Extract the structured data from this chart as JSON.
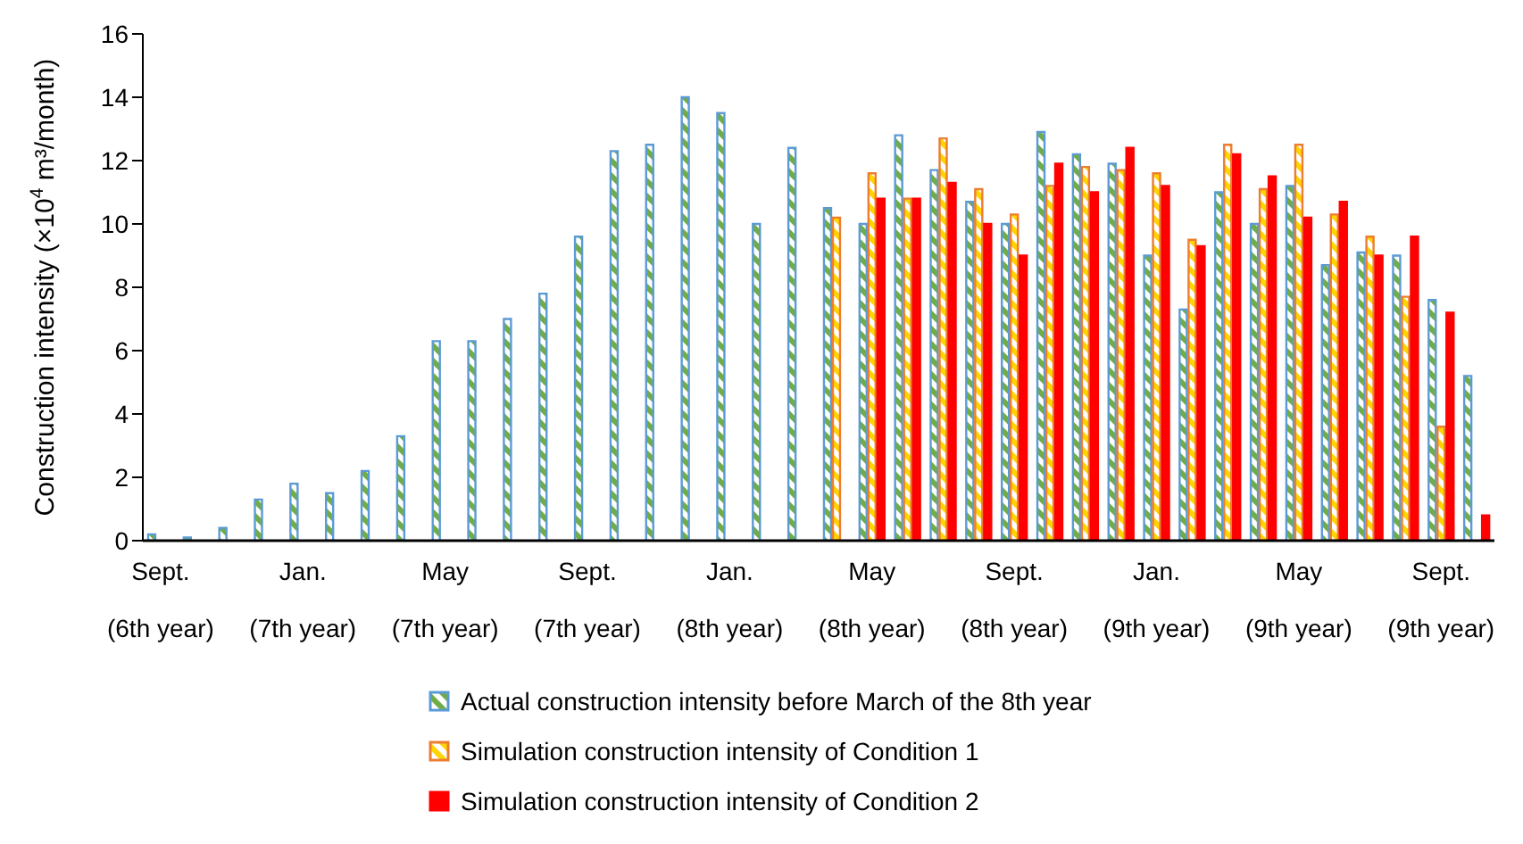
{
  "chart_data": {
    "type": "bar",
    "ylabel": "Construction intensity (×10$^{4}$ m³/month)",
    "categories": [
      "Sept. (6th year)",
      null,
      null,
      null,
      "Jan. (7th year)",
      null,
      null,
      null,
      "May (7th year)",
      null,
      null,
      null,
      "Sept. (7th year)",
      null,
      null,
      null,
      "Jan. (8th year)",
      null,
      null,
      null,
      "May (8th year)",
      null,
      null,
      null,
      "Sept. (8th year)",
      null,
      null,
      null,
      "Jan. (9th year)",
      null,
      null,
      null,
      "May (9th year)",
      null,
      null,
      null,
      "Sept. (9th year)",
      null
    ],
    "series": [
      {
        "name": "Actual construction intensity before March of the 8th year",
        "color": "#5b9bd5",
        "values": [
          0.2,
          0.1,
          0.4,
          1.3,
          1.8,
          1.5,
          2.2,
          3.3,
          6.3,
          6.3,
          7.0,
          7.8,
          9.6,
          12.3,
          12.5,
          14.0,
          13.5,
          10.0,
          12.4,
          10.5,
          10.0,
          12.8,
          11.7,
          10.7,
          10.0,
          12.9,
          12.2,
          11.9,
          9.0,
          7.3,
          11.0,
          10.0,
          11.2,
          8.7,
          9.1,
          9.0,
          7.6,
          5.2
        ]
      },
      {
        "name": "Simulation construction intensity of Condition 1",
        "color": "#ed7d31",
        "values": [
          null,
          null,
          null,
          null,
          null,
          null,
          null,
          null,
          null,
          null,
          null,
          null,
          null,
          null,
          null,
          null,
          null,
          null,
          null,
          10.2,
          11.6,
          10.8,
          12.7,
          11.1,
          10.3,
          11.2,
          11.8,
          11.7,
          11.6,
          9.5,
          12.5,
          11.1,
          12.5,
          10.3,
          9.6,
          7.7,
          3.6,
          null
        ]
      },
      {
        "name": "Simulation construction intensity of Condition 2",
        "color": "#ff0000",
        "values": [
          null,
          null,
          null,
          null,
          null,
          null,
          null,
          null,
          null,
          null,
          null,
          null,
          null,
          null,
          null,
          null,
          null,
          null,
          null,
          null,
          10.8,
          10.8,
          11.3,
          10.0,
          9.0,
          11.9,
          11.0,
          12.4,
          11.2,
          9.3,
          12.2,
          11.5,
          10.2,
          10.7,
          9.0,
          9.6,
          7.2,
          0.8
        ]
      }
    ],
    "ylim": [
      0,
      16
    ],
    "yticks": [
      0,
      2,
      4,
      6,
      8,
      10,
      12,
      14,
      16
    ],
    "grid": false,
    "legend": "bottom"
  }
}
